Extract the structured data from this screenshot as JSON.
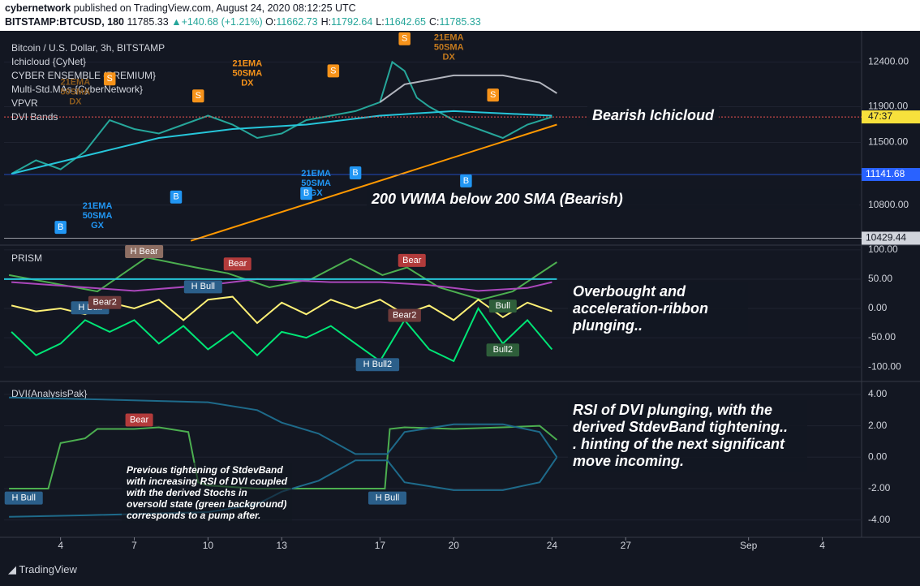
{
  "header": {
    "user": "cybernetwork",
    "published": "published on TradingView.com, August 24, 2020 08:12:25 UTC",
    "symbol": "BITSTAMP:BTCUSD, 180",
    "last": 11785.33,
    "change": "+140.68 (+1.21%)",
    "ohlc": [
      {
        "label": "O:",
        "value": 11662.73
      },
      {
        "label": "H:",
        "value": 11792.64
      },
      {
        "label": "L:",
        "value": 11642.65
      },
      {
        "label": "C:",
        "value": 11785.33
      }
    ]
  },
  "chart_data": [
    {
      "type": "line",
      "title": "Bitcoin / U.S. Dollar, 3h, BITSTAMP",
      "legend_items": [
        "Ichicloud {CyNet}",
        "CYBER ENSEMBLE {PREMIUM}",
        "Multi-Std.MAs {CyberNetwork}",
        "VPVR",
        "DVI Bands"
      ],
      "xlim": [
        1.7,
        36.6
      ],
      "ylim": [
        10370,
        12730
      ],
      "yticks": [
        {
          "value": 12400,
          "label": "12400.00"
        },
        {
          "value": 11900,
          "label": "11900.00"
        },
        {
          "value": 11500,
          "label": "11500.00"
        },
        {
          "value": 10800,
          "label": "10800.00"
        }
      ],
      "series": [
        {
          "color": "#26a69a",
          "x": [
            2,
            3,
            4,
            5,
            6,
            7,
            8,
            9,
            10,
            11,
            12,
            13,
            14,
            15,
            16,
            17,
            17.5,
            18,
            18.5,
            19,
            20,
            21,
            22,
            23,
            24
          ],
          "values": [
            11150,
            11300,
            11200,
            11400,
            11750,
            11650,
            11600,
            11700,
            11800,
            11700,
            11550,
            11600,
            11750,
            11800,
            11850,
            11950,
            12400,
            12300,
            12000,
            11900,
            11750,
            11650,
            11550,
            11700,
            11785.33
          ]
        },
        {
          "color": "#26c6da",
          "x": [
            2,
            5,
            8,
            11,
            14,
            17,
            20,
            24
          ],
          "values": [
            11150,
            11350,
            11550,
            11650,
            11700,
            11800,
            11850,
            11800
          ]
        },
        {
          "color": "#b2b5be",
          "x": [
            17,
            18,
            20,
            22,
            23.5,
            24.2
          ],
          "values": [
            11950,
            12150,
            12250,
            12250,
            12170,
            12050
          ]
        },
        {
          "color": "#ff9800",
          "x": [
            9.3,
            24.2
          ],
          "values": [
            10400,
            11700
          ]
        }
      ],
      "countdown": "47:37",
      "price_marks": [
        11141.68,
        10429.44
      ],
      "price_mark_colors": [
        "#2962ff",
        "#d1d4dc"
      ],
      "signals": [
        {
          "label": "S",
          "x": 6.0,
          "y": 12210,
          "color": "#f7931a"
        },
        {
          "label": "S",
          "x": 9.6,
          "y": 12020,
          "color": "#f7931a"
        },
        {
          "label": "S",
          "x": 15.1,
          "y": 12300,
          "color": "#f7931a"
        },
        {
          "label": "S",
          "x": 18.0,
          "y": 12660,
          "color": "#f7931a"
        },
        {
          "label": "S",
          "x": 21.6,
          "y": 12030,
          "color": "#f7931a"
        },
        {
          "label": "B",
          "x": 4.0,
          "y": 10550,
          "color": "#2196f3"
        },
        {
          "label": "B",
          "x": 8.7,
          "y": 10890,
          "color": "#2196f3"
        },
        {
          "label": "B",
          "x": 14.0,
          "y": 10930,
          "color": "#2196f3"
        },
        {
          "label": "B",
          "x": 16.0,
          "y": 11160,
          "color": "#2196f3"
        },
        {
          "label": "B",
          "x": 20.5,
          "y": 11070,
          "color": "#2196f3"
        },
        {
          "label": [
            "21EMA",
            "50SMA",
            "DX"
          ],
          "x": 11.6,
          "y": 12270,
          "color": "#f7931a"
        },
        {
          "label": [
            "21EMA",
            "50SMA",
            "DX"
          ],
          "x": 19.8,
          "y": 12560,
          "color": "#c47a1e"
        },
        {
          "label": [
            "21EMA",
            "50SMA",
            "DX"
          ],
          "x": 4.6,
          "y": 12060,
          "color": "#8a5a1e"
        },
        {
          "label": [
            "21EMA",
            "50SMA",
            "GX"
          ],
          "x": 5.5,
          "y": 10680,
          "color": "#2196f3"
        },
        {
          "label": [
            "21EMA",
            "50SMA",
            "GX"
          ],
          "x": 14.4,
          "y": 11040,
          "color": "#2196f3"
        }
      ]
    },
    {
      "type": "line",
      "title": "PRISM",
      "xlim": [
        1.7,
        36.6
      ],
      "ylim": [
        -122,
        104
      ],
      "yticks": [
        {
          "value": 100,
          "label": "100.00"
        },
        {
          "value": 50,
          "label": "50.00"
        },
        {
          "value": 0,
          "label": "0.00"
        },
        {
          "value": -50,
          "label": "-50.00"
        },
        {
          "value": -100,
          "label": "-100.00"
        }
      ],
      "series": [
        {
          "color": "#4caf50",
          "x": [
            1.9,
            5.5,
            7.5,
            9.5,
            10.8,
            12.5,
            14.2,
            15.8,
            17.1,
            18.1,
            19.4,
            21.1,
            22.4,
            24.2
          ],
          "values": [
            57,
            29,
            87,
            70,
            60,
            36,
            50,
            85,
            57,
            70,
            36,
            15,
            29,
            79
          ]
        },
        {
          "color": "#ab47bc",
          "x": [
            2,
            7,
            10,
            12,
            15,
            17,
            19,
            21,
            23,
            24
          ],
          "values": [
            45,
            30,
            40,
            50,
            45,
            45,
            40,
            30,
            35,
            45
          ]
        },
        {
          "color": "#fff176",
          "x": [
            2,
            3,
            4,
            5,
            6,
            7,
            8,
            9,
            10,
            11,
            12,
            13,
            14,
            15,
            16,
            17,
            18,
            19,
            20,
            21,
            22,
            23,
            24
          ],
          "values": [
            5,
            -5,
            0,
            -10,
            10,
            0,
            15,
            -20,
            15,
            20,
            -25,
            10,
            -10,
            15,
            0,
            15,
            -10,
            5,
            -20,
            15,
            -15,
            10,
            -5
          ]
        },
        {
          "color": "#00e676",
          "x": [
            2,
            3,
            4,
            5,
            6,
            7,
            8,
            9,
            10,
            11,
            12,
            13,
            14,
            15,
            16,
            17,
            18,
            19,
            20,
            21,
            22,
            23,
            24
          ],
          "values": [
            -40,
            -80,
            -60,
            -20,
            -40,
            -20,
            -60,
            -30,
            -70,
            -40,
            -80,
            -40,
            -50,
            -30,
            -60,
            -90,
            -20,
            -70,
            -90,
            0,
            -60,
            -20,
            -70
          ]
        },
        {
          "color": "#26c6da",
          "x": [
            1.7,
            24.2
          ],
          "values": [
            50,
            50
          ]
        }
      ],
      "signals": [
        {
          "label": "H Bear",
          "x": 7.4,
          "y": 97,
          "color": "#8d6e63"
        },
        {
          "label": "Bear",
          "x": 11.2,
          "y": 76,
          "color": "#b23b3b"
        },
        {
          "label": "H Bull",
          "x": 9.8,
          "y": 37,
          "color": "#2b5f8a"
        },
        {
          "label": "H Bull",
          "x": 5.2,
          "y": 1,
          "color": "#2b5f8a"
        },
        {
          "label": "Bear2",
          "x": 5.8,
          "y": 10,
          "color": "#6d3a3a"
        },
        {
          "label": "Bear",
          "x": 18.3,
          "y": 82,
          "color": "#b23b3b"
        },
        {
          "label": "Bear2",
          "x": 18.0,
          "y": -12,
          "color": "#6d3a3a"
        },
        {
          "label": "Bull",
          "x": 22.0,
          "y": 4,
          "color": "#2e5e3a"
        },
        {
          "label": "Bull2",
          "x": 22.0,
          "y": -71,
          "color": "#2e5e3a"
        },
        {
          "label": "H Bull2",
          "x": 16.9,
          "y": -96,
          "color": "#2b5f8a"
        }
      ]
    },
    {
      "type": "line",
      "title": "DVI{AnalysisPak}",
      "xlim": [
        1.7,
        36.6
      ],
      "ylim": [
        -5.0,
        4.72
      ],
      "yticks": [
        {
          "value": 4,
          "label": "4.00"
        },
        {
          "value": 2,
          "label": "2.00"
        },
        {
          "value": 0,
          "label": "0.00"
        },
        {
          "value": -2,
          "label": "-2.00"
        },
        {
          "value": -4,
          "label": "-4.00"
        }
      ],
      "xticks": [
        4,
        7,
        10,
        13,
        17,
        20,
        24,
        27,
        {
          "value": 32,
          "label": "Sep"
        },
        {
          "value": 35,
          "label": "4"
        }
      ],
      "series": [
        {
          "color": "#4caf50",
          "x": [
            1.9,
            3,
            3.5,
            4,
            5,
            5.5,
            7,
            8,
            9.2,
            9.6,
            10,
            12,
            14,
            16,
            17.2,
            17.4,
            18,
            20,
            22,
            23.5,
            24.2
          ],
          "values": [
            -2.0,
            -2.0,
            -2.0,
            0.9,
            1.2,
            1.8,
            1.8,
            1.9,
            1.6,
            -1.6,
            -1.8,
            -2.0,
            -2.0,
            -2.0,
            -2.0,
            1.8,
            1.9,
            1.8,
            1.9,
            2.0,
            1.1
          ]
        },
        {
          "color": "#1e6a8a",
          "x": [
            1.9,
            5,
            10,
            12,
            13,
            14.5,
            16,
            17.3,
            18,
            20,
            22,
            23.5,
            24.2
          ],
          "values": [
            3.8,
            3.7,
            3.5,
            3.0,
            2.2,
            1.5,
            0.2,
            0.2,
            1.6,
            2.1,
            2.1,
            1.6,
            0
          ]
        },
        {
          "color": "#1e6a8a",
          "x": [
            1.9,
            5,
            10,
            12,
            13,
            14.5,
            16,
            17.3,
            18,
            20,
            22,
            23.5,
            24.2
          ],
          "values": [
            -3.8,
            -3.7,
            -3.5,
            -3.0,
            -2.2,
            -1.5,
            -0.2,
            -0.2,
            -1.6,
            -2.1,
            -2.1,
            -1.6,
            0
          ]
        }
      ],
      "signals": [
        {
          "label": "Bear",
          "x": 7.2,
          "y": 2.37,
          "color": "#b23b3b"
        },
        {
          "label": "H Bull",
          "x": 2.5,
          "y": -2.6,
          "color": "#2b5f8a"
        },
        {
          "label": "H Bull",
          "x": 17.3,
          "y": -2.6,
          "color": "#2b5f8a"
        }
      ]
    }
  ],
  "annotations": {
    "bearish": [
      "Bearish Ichicloud"
    ],
    "vwma": [
      "200 VWMA below 200 SMA (Bearish)"
    ],
    "overbought": [
      "Overbought and",
      "acceleration-ribbon",
      "plunging.."
    ],
    "rsi": [
      "RSI of DVI plunging, with the",
      "derived StdevBand tightening..",
      ". hinting of the next significant",
      "move incoming."
    ],
    "previous": [
      "Previous tightening of StdevBand",
      "with increasing RSI of DVI coupled",
      "with the derived Stochs in",
      "oversold state (green background)",
      "corresponds to a pump after."
    ]
  },
  "footer": {
    "brand": "TradingView"
  }
}
